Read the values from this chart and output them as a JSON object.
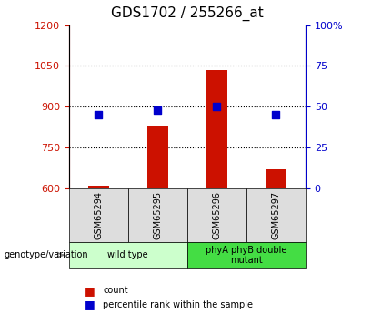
{
  "title": "GDS1702 / 255266_at",
  "samples": [
    "GSM65294",
    "GSM65295",
    "GSM65296",
    "GSM65297"
  ],
  "counts": [
    610,
    830,
    1035,
    670
  ],
  "percentiles": [
    45,
    48,
    50,
    45
  ],
  "ylim_left": [
    600,
    1200
  ],
  "ylim_right": [
    0,
    100
  ],
  "yticks_left": [
    600,
    750,
    900,
    1050,
    1200
  ],
  "yticks_right": [
    0,
    25,
    50,
    75,
    100
  ],
  "bar_color": "#cc1100",
  "dot_color": "#0000cc",
  "bar_bottom": 600,
  "groups": [
    {
      "label": "wild type",
      "samples": [
        0,
        1
      ],
      "color": "#ccffcc"
    },
    {
      "label": "phyA phyB double\nmutant",
      "samples": [
        2,
        3
      ],
      "color": "#44dd44"
    }
  ],
  "genotype_label": "genotype/variation",
  "legend_count": "count",
  "legend_percentile": "percentile rank within the sample",
  "title_fontsize": 11,
  "tick_fontsize": 8,
  "label_fontsize": 8,
  "sample_box_color": "#dddddd",
  "grid_color": "#000000"
}
